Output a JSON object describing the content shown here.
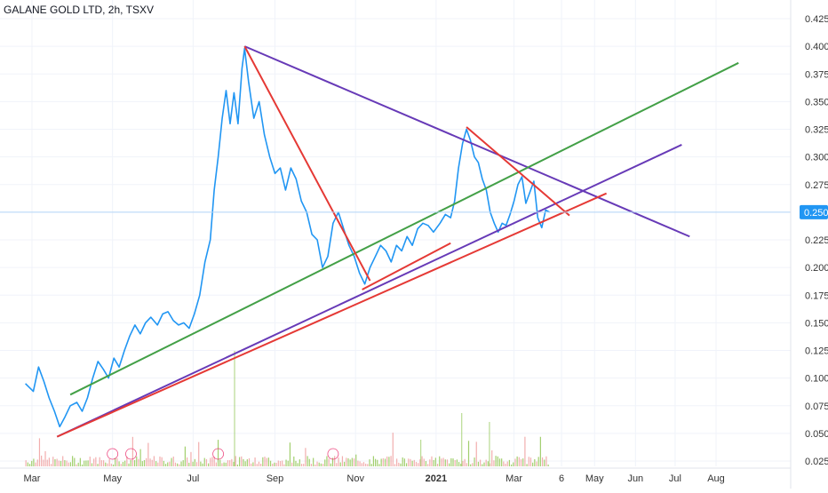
{
  "header": {
    "title": "GALANE GOLD LTD, 2h, TSXV"
  },
  "colors": {
    "price": "#2196f3",
    "green_line": "#43a047",
    "red_line": "#e53935",
    "purple_line": "#673ab7",
    "last_price_bg": "#2196f3",
    "volume_up": "#8bc34a",
    "volume_down": "#ef9a9a",
    "grid": "#f0f3fa",
    "event_marker": "#e91e63"
  },
  "chart_data": {
    "type": "line",
    "title": "GALANE GOLD LTD, 2h, TSXV",
    "x_axis": {
      "type": "date",
      "range": [
        "2020-02-25",
        "2021-09-20"
      ],
      "tick_labels": [
        {
          "label": "Mar",
          "date": "2020-03-01"
        },
        {
          "label": "May",
          "date": "2020-05-01"
        },
        {
          "label": "Jul",
          "date": "2020-07-01"
        },
        {
          "label": "Sep",
          "date": "2020-09-01"
        },
        {
          "label": "Nov",
          "date": "2020-11-01"
        },
        {
          "label": "2021",
          "date": "2021-01-01",
          "bold": true
        },
        {
          "label": "Mar",
          "date": "2021-03-01"
        },
        {
          "label": "6",
          "date": "2021-04-06"
        },
        {
          "label": "May",
          "date": "2021-05-01"
        },
        {
          "label": "Jun",
          "date": "2021-06-01"
        },
        {
          "label": "Jul",
          "date": "2021-07-01"
        },
        {
          "label": "Aug",
          "date": "2021-08-01"
        }
      ]
    },
    "y_axis": {
      "position": "right",
      "range": [
        0.02,
        0.43
      ],
      "tick_labels": [
        "0.025",
        "0.050",
        "0.075",
        "0.100",
        "0.125",
        "0.150",
        "0.175",
        "0.200",
        "0.225",
        "0.250",
        "0.275",
        "0.300",
        "0.325",
        "0.350",
        "0.375",
        "0.400",
        "0.425"
      ]
    },
    "last_price": "0.250",
    "grid": true,
    "price_series": {
      "name": "",
      "color": "#2196f3",
      "points": [
        [
          "2020-02-25",
          0.095
        ],
        [
          "2020-03-02",
          0.088
        ],
        [
          "2020-03-06",
          0.11
        ],
        [
          "2020-03-10",
          0.097
        ],
        [
          "2020-03-14",
          0.082
        ],
        [
          "2020-03-18",
          0.07
        ],
        [
          "2020-03-22",
          0.056
        ],
        [
          "2020-03-26",
          0.065
        ],
        [
          "2020-03-30",
          0.075
        ],
        [
          "2020-04-04",
          0.078
        ],
        [
          "2020-04-08",
          0.07
        ],
        [
          "2020-04-12",
          0.082
        ],
        [
          "2020-04-16",
          0.1
        ],
        [
          "2020-04-20",
          0.115
        ],
        [
          "2020-04-24",
          0.108
        ],
        [
          "2020-04-28",
          0.1
        ],
        [
          "2020-05-02",
          0.118
        ],
        [
          "2020-05-06",
          0.11
        ],
        [
          "2020-05-10",
          0.125
        ],
        [
          "2020-05-14",
          0.138
        ],
        [
          "2020-05-18",
          0.148
        ],
        [
          "2020-05-22",
          0.14
        ],
        [
          "2020-05-26",
          0.15
        ],
        [
          "2020-05-30",
          0.155
        ],
        [
          "2020-06-04",
          0.148
        ],
        [
          "2020-06-08",
          0.158
        ],
        [
          "2020-06-12",
          0.16
        ],
        [
          "2020-06-16",
          0.152
        ],
        [
          "2020-06-20",
          0.148
        ],
        [
          "2020-06-24",
          0.15
        ],
        [
          "2020-06-28",
          0.145
        ],
        [
          "2020-07-02",
          0.158
        ],
        [
          "2020-07-06",
          0.175
        ],
        [
          "2020-07-10",
          0.205
        ],
        [
          "2020-07-14",
          0.225
        ],
        [
          "2020-07-17",
          0.27
        ],
        [
          "2020-07-20",
          0.3
        ],
        [
          "2020-07-23",
          0.335
        ],
        [
          "2020-07-26",
          0.36
        ],
        [
          "2020-07-29",
          0.33
        ],
        [
          "2020-08-01",
          0.358
        ],
        [
          "2020-08-04",
          0.33
        ],
        [
          "2020-08-07",
          0.38
        ],
        [
          "2020-08-09",
          0.398
        ],
        [
          "2020-08-12",
          0.368
        ],
        [
          "2020-08-16",
          0.335
        ],
        [
          "2020-08-20",
          0.35
        ],
        [
          "2020-08-24",
          0.32
        ],
        [
          "2020-08-28",
          0.3
        ],
        [
          "2020-09-01",
          0.285
        ],
        [
          "2020-09-05",
          0.29
        ],
        [
          "2020-09-09",
          0.27
        ],
        [
          "2020-09-13",
          0.29
        ],
        [
          "2020-09-17",
          0.28
        ],
        [
          "2020-09-21",
          0.26
        ],
        [
          "2020-09-25",
          0.25
        ],
        [
          "2020-09-29",
          0.23
        ],
        [
          "2020-10-03",
          0.225
        ],
        [
          "2020-10-07",
          0.2
        ],
        [
          "2020-10-11",
          0.21
        ],
        [
          "2020-10-15",
          0.24
        ],
        [
          "2020-10-19",
          0.25
        ],
        [
          "2020-10-23",
          0.235
        ],
        [
          "2020-10-27",
          0.22
        ],
        [
          "2020-10-31",
          0.21
        ],
        [
          "2020-11-04",
          0.195
        ],
        [
          "2020-11-08",
          0.185
        ],
        [
          "2020-11-12",
          0.2
        ],
        [
          "2020-11-16",
          0.21
        ],
        [
          "2020-11-20",
          0.22
        ],
        [
          "2020-11-24",
          0.215
        ],
        [
          "2020-11-28",
          0.205
        ],
        [
          "2020-12-02",
          0.22
        ],
        [
          "2020-12-06",
          0.215
        ],
        [
          "2020-12-10",
          0.228
        ],
        [
          "2020-12-14",
          0.22
        ],
        [
          "2020-12-18",
          0.235
        ],
        [
          "2020-12-22",
          0.24
        ],
        [
          "2020-12-26",
          0.238
        ],
        [
          "2020-12-30",
          0.232
        ],
        [
          "2021-01-04",
          0.24
        ],
        [
          "2021-01-08",
          0.248
        ],
        [
          "2021-01-12",
          0.245
        ],
        [
          "2021-01-15",
          0.26
        ],
        [
          "2021-01-18",
          0.29
        ],
        [
          "2021-01-21",
          0.312
        ],
        [
          "2021-01-24",
          0.325
        ],
        [
          "2021-01-27",
          0.315
        ],
        [
          "2021-01-30",
          0.3
        ],
        [
          "2021-02-02",
          0.295
        ],
        [
          "2021-02-05",
          0.28
        ],
        [
          "2021-02-08",
          0.27
        ],
        [
          "2021-02-11",
          0.25
        ],
        [
          "2021-02-14",
          0.24
        ],
        [
          "2021-02-17",
          0.232
        ],
        [
          "2021-02-20",
          0.24
        ],
        [
          "2021-02-23",
          0.238
        ],
        [
          "2021-02-26",
          0.248
        ],
        [
          "2021-03-01",
          0.26
        ],
        [
          "2021-03-04",
          0.275
        ],
        [
          "2021-03-07",
          0.282
        ],
        [
          "2021-03-10",
          0.258
        ],
        [
          "2021-03-13",
          0.268
        ],
        [
          "2021-03-16",
          0.278
        ],
        [
          "2021-03-19",
          0.245
        ],
        [
          "2021-03-22",
          0.236
        ],
        [
          "2021-03-25",
          0.252
        ],
        [
          "2021-03-28",
          0.25
        ]
      ]
    },
    "trendlines": [
      {
        "name": "",
        "color": "#673ab7",
        "from": [
          "2020-08-09",
          0.4
        ],
        "to": [
          "2021-07-12",
          0.228
        ]
      },
      {
        "name": "",
        "color": "#673ab7",
        "from": [
          "2020-03-20",
          0.047
        ],
        "to": [
          "2021-07-06",
          0.311
        ]
      },
      {
        "name": "",
        "color": "#43a047",
        "from": [
          "2020-03-30",
          0.085
        ],
        "to": [
          "2021-08-18",
          0.385
        ]
      },
      {
        "name": "",
        "color": "#e53935",
        "from": [
          "2020-03-20",
          0.047
        ],
        "to": [
          "2021-05-10",
          0.267
        ]
      },
      {
        "name": "",
        "color": "#e53935",
        "from": [
          "2020-08-09",
          0.4
        ],
        "to": [
          "2020-11-12",
          0.188
        ]
      },
      {
        "name": "",
        "color": "#e53935",
        "from": [
          "2020-11-06",
          0.18
        ],
        "to": [
          "2021-01-12",
          0.222
        ]
      },
      {
        "name": "",
        "color": "#e53935",
        "from": [
          "2021-01-24",
          0.327
        ],
        "to": [
          "2021-04-12",
          0.247
        ]
      }
    ],
    "volume_note": "volume histogram along bottom"
  }
}
